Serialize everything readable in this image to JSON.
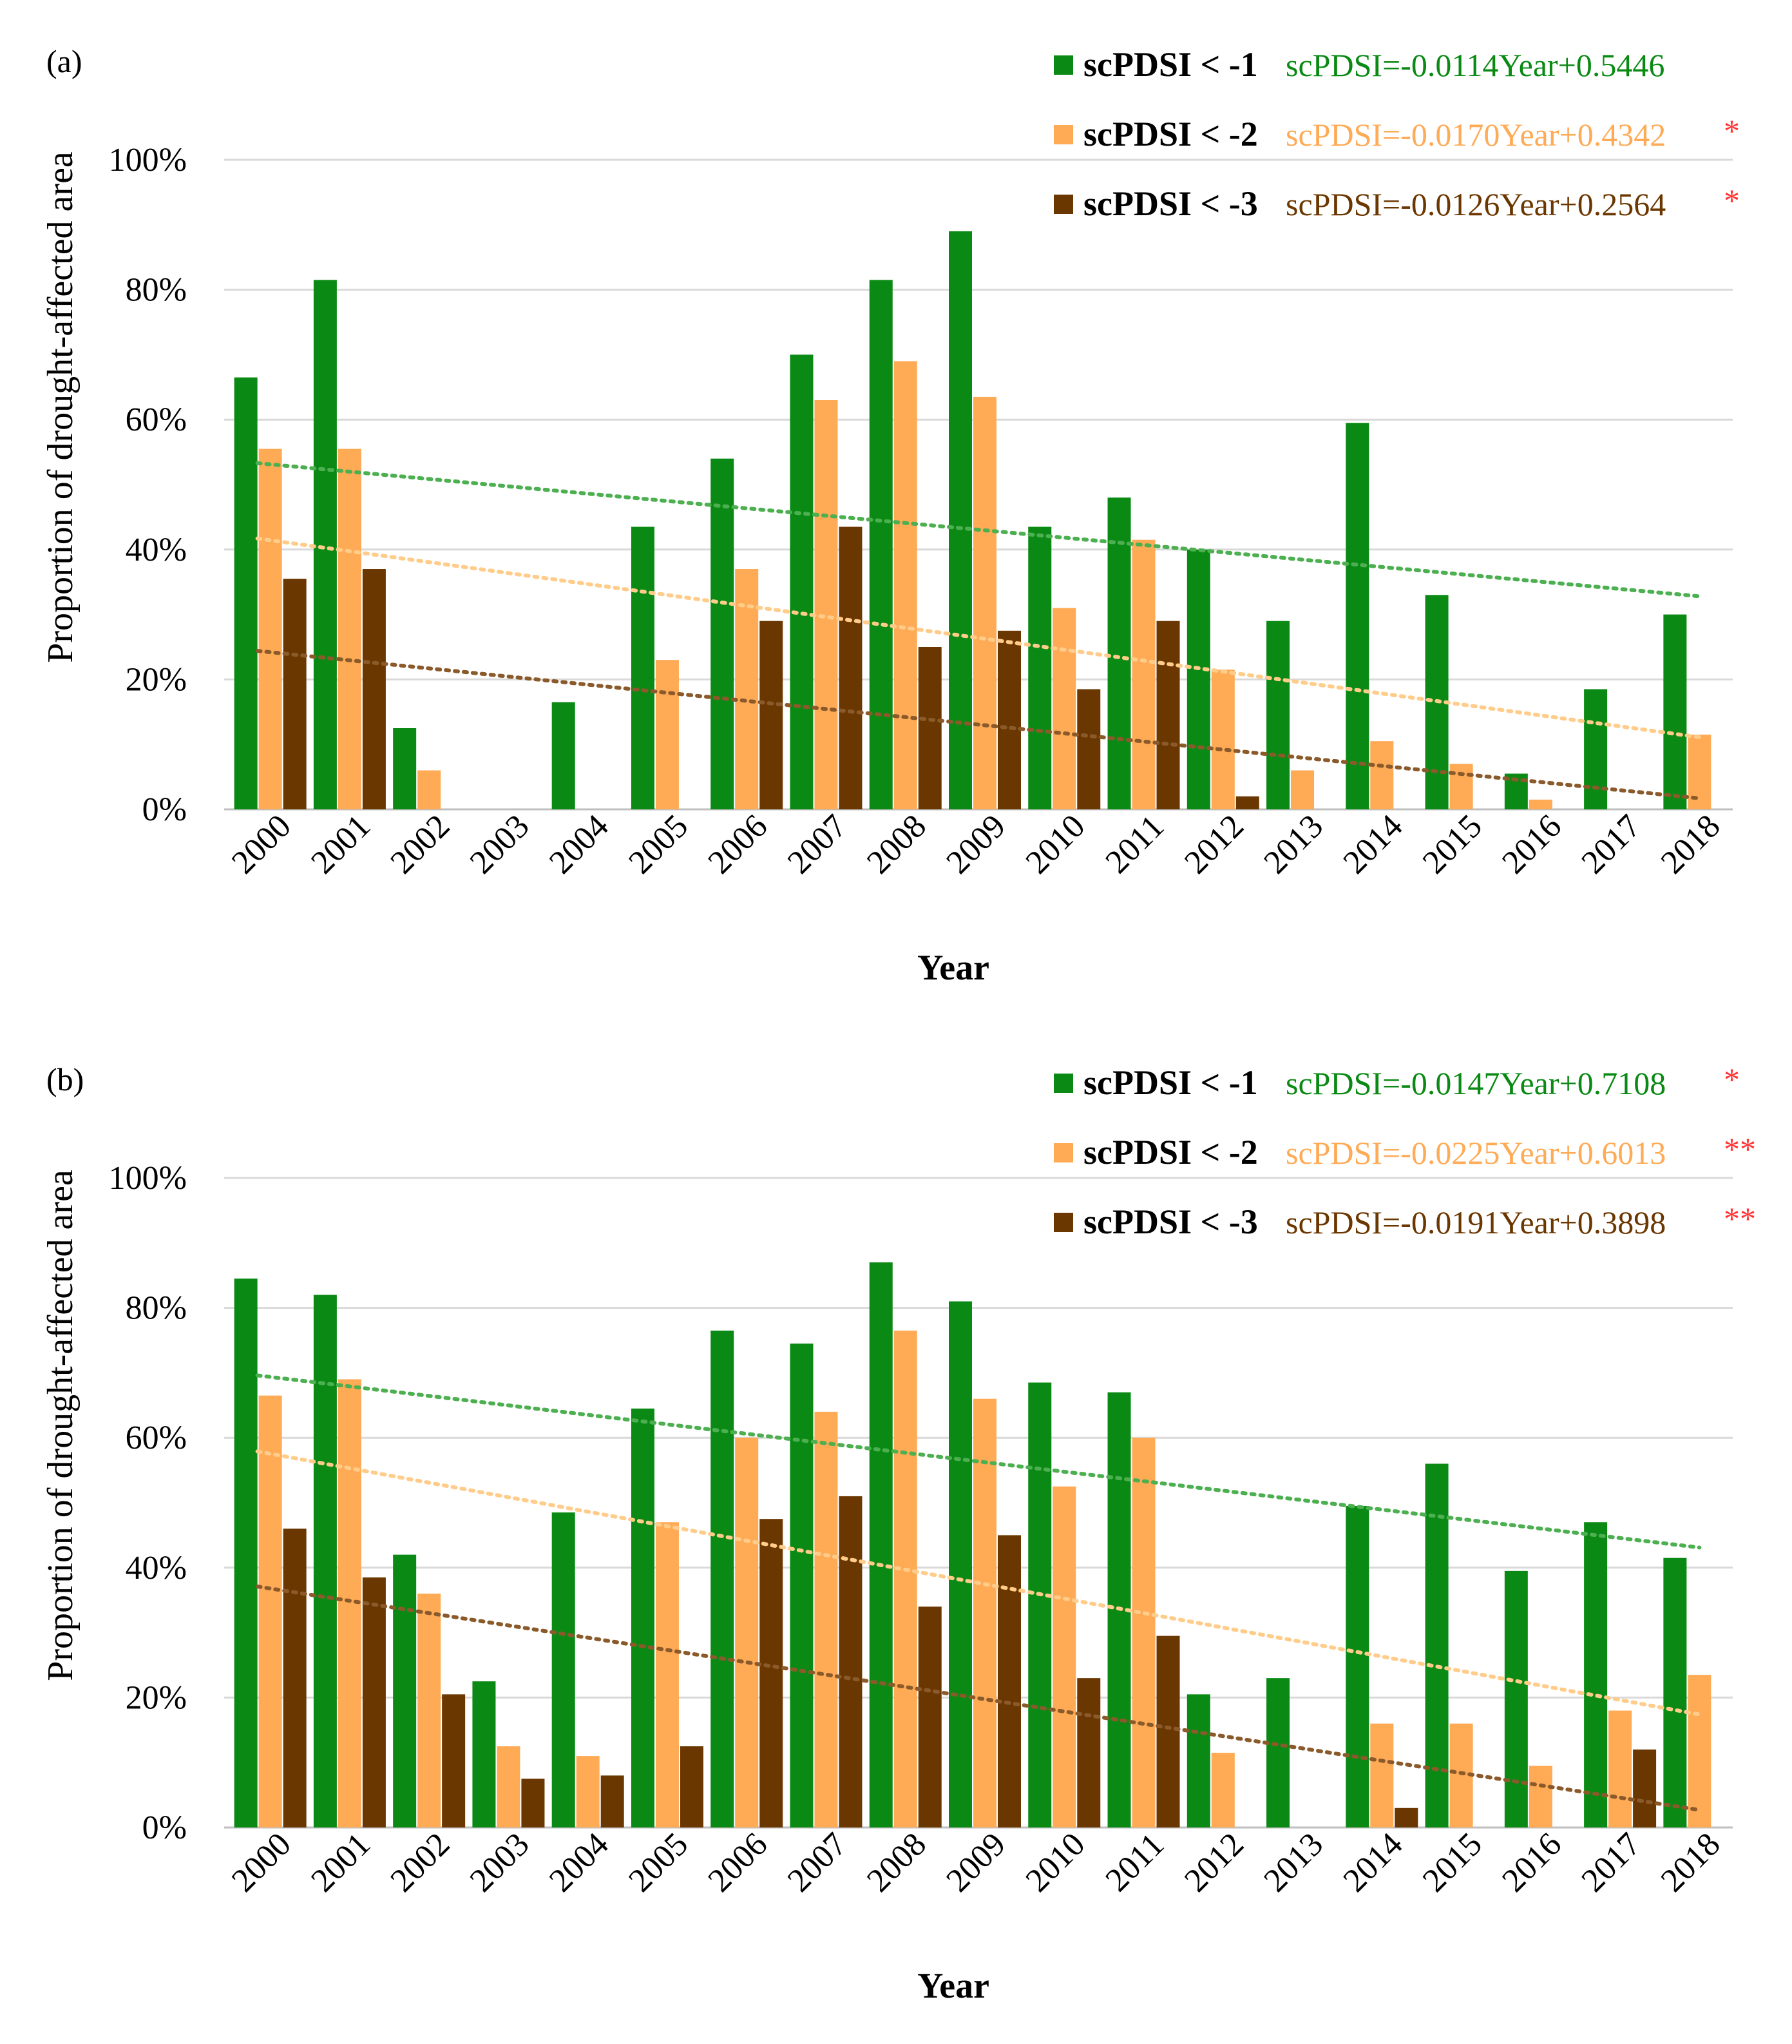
{
  "figure": {
    "colors": {
      "series1": "#0a8a14",
      "series2": "#ffaa55",
      "series3": "#6b3700",
      "trend1": "#4caf50",
      "trend2": "#ffcc8a",
      "trend3": "#8b5a2b",
      "significance": "#ff3333",
      "grid": "#d9d9d9",
      "axis_text": "#000000"
    },
    "series_colors": [
      "#0a8a14",
      "#ffaa55",
      "#6b3700"
    ],
    "trend_colors": [
      "#4caf50",
      "#ffcc8a",
      "#8b5a2b"
    ],
    "equation_colors": [
      "#0a8a14",
      "#ffaa55",
      "#6b3700"
    ]
  },
  "chart_data": [
    {
      "panel_label": "(a)",
      "type": "bar",
      "xlabel": "Year",
      "ylabel": "Proportion of drought-affected area",
      "ylim": [
        0,
        100
      ],
      "yticks": [
        "0%",
        "20%",
        "40%",
        "60%",
        "80%",
        "100%"
      ],
      "grid": true,
      "legend_position": "top-right",
      "categories": [
        "2000",
        "2001",
        "2002",
        "2003",
        "2004",
        "2005",
        "2006",
        "2007",
        "2008",
        "2009",
        "2010",
        "2011",
        "2012",
        "2013",
        "2014",
        "2015",
        "2016",
        "2017",
        "2018"
      ],
      "series": [
        {
          "name": "scPDSI < -1",
          "equation": "scPDSI=-0.0114Year+0.5446",
          "significance": "",
          "values": [
            66.5,
            81.5,
            12.5,
            0,
            16.5,
            43.5,
            54,
            70,
            81.5,
            89,
            43.5,
            48,
            40,
            29,
            59.5,
            33,
            5.5,
            18.5,
            30
          ],
          "trend": [
            53.3,
            32.8
          ]
        },
        {
          "name": "scPDSI < -2",
          "equation": "scPDSI=-0.0170Year+0.4342",
          "significance": "*",
          "values": [
            55.5,
            55.5,
            6,
            0,
            0,
            23,
            37,
            63,
            69,
            63.5,
            31,
            41.5,
            21.5,
            6,
            10.5,
            7,
            1.5,
            0,
            11.5
          ],
          "trend": [
            41.7,
            11.1
          ]
        },
        {
          "name": "scPDSI < -3",
          "equation": "scPDSI=-0.0126Year+0.2564",
          "significance": "*",
          "values": [
            35.5,
            37,
            0,
            0,
            0,
            0,
            29,
            43.5,
            25,
            27.5,
            18.5,
            29,
            2,
            0,
            0,
            0,
            0,
            0,
            0
          ],
          "trend": [
            24.4,
            1.7
          ]
        }
      ]
    },
    {
      "panel_label": "(b)",
      "type": "bar",
      "xlabel": "Year",
      "ylabel": "Proportion of drought-affected area",
      "ylim": [
        0,
        100
      ],
      "yticks": [
        "0%",
        "20%",
        "40%",
        "60%",
        "80%",
        "100%"
      ],
      "grid": true,
      "legend_position": "top-right",
      "categories": [
        "2000",
        "2001",
        "2002",
        "2003",
        "2004",
        "2005",
        "2006",
        "2007",
        "2008",
        "2009",
        "2010",
        "2011",
        "2012",
        "2013",
        "2014",
        "2015",
        "2016",
        "2017",
        "2018"
      ],
      "series": [
        {
          "name": "scPDSI < -1",
          "equation": "scPDSI=-0.0147Year+0.7108",
          "significance": "*",
          "values": [
            84.5,
            82,
            42,
            22.5,
            48.5,
            64.5,
            76.5,
            74.5,
            87,
            81,
            68.5,
            67,
            20.5,
            23,
            49.5,
            56,
            39.5,
            47,
            41.5
          ],
          "trend": [
            69.6,
            43.1
          ]
        },
        {
          "name": "scPDSI < -2",
          "equation": "scPDSI=-0.0225Year+0.6013",
          "significance": "**",
          "values": [
            66.5,
            69,
            36,
            12.5,
            11,
            47,
            60,
            64,
            76.5,
            66,
            52.5,
            60,
            11.5,
            0,
            16,
            16,
            9.5,
            18,
            23.5
          ],
          "trend": [
            57.9,
            17.4
          ]
        },
        {
          "name": "scPDSI < -3",
          "equation": "scPDSI=-0.0191Year+0.3898",
          "significance": "**",
          "values": [
            46,
            38.5,
            20.5,
            7.5,
            8,
            12.5,
            47.5,
            51,
            34,
            45,
            23,
            29.5,
            0,
            0,
            3,
            0,
            0,
            12,
            0
          ],
          "trend": [
            37.1,
            2.7
          ]
        }
      ]
    }
  ]
}
